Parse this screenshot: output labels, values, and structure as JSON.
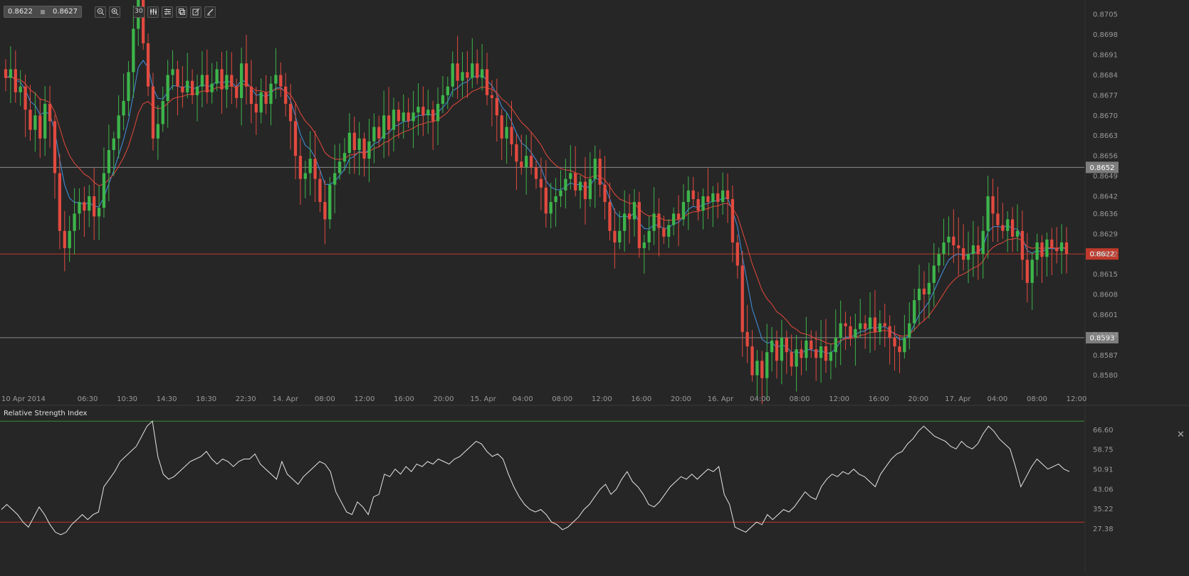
{
  "toolbar": {
    "bid": "0.8622",
    "ask": "0.8627",
    "timeframe": "30",
    "buttons": [
      {
        "name": "zoom-out-icon",
        "glyph": "−"
      },
      {
        "name": "zoom-in-icon",
        "glyph": "+"
      }
    ],
    "tools": [
      {
        "name": "timeframe-button",
        "glyph": "30"
      },
      {
        "name": "chart-type-icon",
        "glyph": "⫼"
      },
      {
        "name": "indicators-icon",
        "glyph": "☰"
      },
      {
        "name": "template-icon",
        "glyph": "⎘"
      },
      {
        "name": "edit-icon",
        "glyph": "✎"
      },
      {
        "name": "draw-icon",
        "glyph": "✐"
      }
    ]
  },
  "colors": {
    "background": "#262626",
    "up": "#3db54a",
    "down": "#e24a3f",
    "ema_fast": "#3f8bd4",
    "ema_slow": "#d6453a",
    "grid_line": "#8a8a8a",
    "current_price": "#c0392b",
    "rsi_line": "#e6e6e6",
    "rsi_upper": "#3a8a3a",
    "rsi_lower": "#c0392b"
  },
  "chart_data": [
    {
      "type": "candlestick",
      "ylim": [
        0.8575,
        0.8708
      ],
      "y_ticks": [
        "0.8705",
        "0.8698",
        "0.8691",
        "0.8684",
        "0.8677",
        "0.8670",
        "0.8663",
        "0.8656",
        "0.8649",
        "0.8642",
        "0.8636",
        "0.8629",
        "0.8622",
        "0.8615",
        "0.8608",
        "0.8601",
        "0.8594",
        "0.8587",
        "0.8580"
      ],
      "x_ticks": [
        "10 Apr 2014",
        "06:30",
        "10:30",
        "14:30",
        "18:30",
        "22:30",
        "14. Apr",
        "08:00",
        "12:00",
        "16:00",
        "20:00",
        "15. Apr",
        "04:00",
        "08:00",
        "12:00",
        "16:00",
        "20:00",
        "16. Apr",
        "04:00",
        "08:00",
        "12:00",
        "16:00",
        "20:00",
        "17. Apr",
        "04:00",
        "08:00",
        "12:00"
      ],
      "horizontal_lines": [
        {
          "value": 0.8652,
          "label": "0.8652",
          "kind": "level"
        },
        {
          "value": 0.8622,
          "label": "0.8622",
          "kind": "current"
        },
        {
          "value": 0.8593,
          "label": "0.8593",
          "kind": "level"
        }
      ],
      "moving_averages": [
        {
          "type": "EMA",
          "role": "fast",
          "color": "#3f8bd4"
        },
        {
          "type": "EMA",
          "role": "slow",
          "color": "#d6453a"
        }
      ],
      "path": [
        0.8683,
        0.8686,
        0.8678,
        0.868,
        0.8672,
        0.8665,
        0.867,
        0.8662,
        0.8674,
        0.8668,
        0.865,
        0.863,
        0.8624,
        0.863,
        0.8636,
        0.864,
        0.8637,
        0.8642,
        0.8635,
        0.8638,
        0.865,
        0.8658,
        0.8662,
        0.867,
        0.8675,
        0.8685,
        0.87,
        0.871,
        0.8695,
        0.868,
        0.8662,
        0.8667,
        0.8675,
        0.8684,
        0.8686,
        0.868,
        0.8678,
        0.8682,
        0.8677,
        0.868,
        0.8684,
        0.8678,
        0.8681,
        0.8686,
        0.8679,
        0.8684,
        0.868,
        0.8676,
        0.8688,
        0.868,
        0.8674,
        0.8671,
        0.8678,
        0.8674,
        0.8681,
        0.8684,
        0.868,
        0.8674,
        0.8668,
        0.8656,
        0.8648,
        0.865,
        0.8655,
        0.8648,
        0.864,
        0.8634,
        0.8646,
        0.865,
        0.8654,
        0.8657,
        0.8664,
        0.8658,
        0.8662,
        0.8655,
        0.8661,
        0.8666,
        0.8662,
        0.867,
        0.8665,
        0.8672,
        0.8668,
        0.8671,
        0.8668,
        0.8671,
        0.8673,
        0.867,
        0.8672,
        0.8668,
        0.8674,
        0.8677,
        0.868,
        0.8688,
        0.8682,
        0.8685,
        0.8683,
        0.8688,
        0.8683,
        0.8686,
        0.8677,
        0.8676,
        0.867,
        0.8662,
        0.8666,
        0.866,
        0.8654,
        0.8652,
        0.8656,
        0.8652,
        0.8648,
        0.8645,
        0.8636,
        0.864,
        0.8642,
        0.8644,
        0.8648,
        0.865,
        0.8644,
        0.8647,
        0.8641,
        0.8648,
        0.8655,
        0.8646,
        0.864,
        0.863,
        0.8626,
        0.863,
        0.8636,
        0.8634,
        0.864,
        0.8624,
        0.8626,
        0.863,
        0.8636,
        0.8631,
        0.8628,
        0.8632,
        0.8636,
        0.8634,
        0.864,
        0.8644,
        0.8641,
        0.8637,
        0.8642,
        0.864,
        0.8643,
        0.864,
        0.8644,
        0.8641,
        0.8626,
        0.8618,
        0.8595,
        0.859,
        0.858,
        0.8585,
        0.8579,
        0.8588,
        0.8592,
        0.8585,
        0.8593,
        0.8588,
        0.8583,
        0.8589,
        0.8586,
        0.8592,
        0.8589,
        0.8586,
        0.859,
        0.8585,
        0.8588,
        0.8593,
        0.8598,
        0.8597,
        0.8593,
        0.8596,
        0.8598,
        0.8596,
        0.86,
        0.8595,
        0.8598,
        0.8597,
        0.8593,
        0.859,
        0.8588,
        0.8593,
        0.8598,
        0.8606,
        0.861,
        0.8608,
        0.8612,
        0.8618,
        0.8622,
        0.8626,
        0.8628,
        0.8625,
        0.8624,
        0.862,
        0.8622,
        0.8625,
        0.8622,
        0.863,
        0.8642,
        0.8636,
        0.8632,
        0.863,
        0.8634,
        0.8628,
        0.863,
        0.862,
        0.8612,
        0.862,
        0.8626,
        0.8621,
        0.8627,
        0.8624,
        0.8623,
        0.8626,
        0.8622
      ]
    },
    {
      "type": "line",
      "title": "Relative Strength Index",
      "ylim": [
        25,
        74
      ],
      "y_ticks": [
        "66.60",
        "58.75",
        "50.91",
        "43.06",
        "35.22",
        "27.38"
      ],
      "levels": [
        70,
        30
      ],
      "values": [
        35,
        37,
        35,
        33,
        30,
        28,
        32,
        36,
        33,
        29,
        26,
        25,
        26,
        29,
        31,
        33,
        31,
        33,
        34,
        44,
        47,
        50,
        54,
        56,
        58,
        60,
        64,
        68,
        70,
        56,
        49,
        47,
        48,
        50,
        52,
        54,
        55,
        56,
        58,
        55,
        53,
        55,
        54,
        52,
        54,
        55,
        55,
        57,
        53,
        51,
        49,
        47,
        54,
        49,
        47,
        45,
        48,
        50,
        52,
        54,
        53,
        50,
        42,
        38,
        34,
        33,
        38,
        36,
        33,
        40,
        41,
        49,
        48,
        51,
        49,
        52,
        50,
        53,
        52,
        54,
        53,
        55,
        54,
        53,
        55,
        56,
        58,
        60,
        62,
        61,
        58,
        56,
        57,
        55,
        49,
        44,
        40,
        37,
        35,
        34,
        35,
        33,
        30,
        29,
        27,
        28,
        30,
        32,
        35,
        37,
        40,
        43,
        45,
        41,
        43,
        47,
        50,
        46,
        44,
        41,
        37,
        36,
        38,
        41,
        44,
        46,
        48,
        47,
        49,
        47,
        49,
        51,
        50,
        52,
        41,
        37,
        28,
        27,
        26,
        28,
        30,
        29,
        33,
        31,
        33,
        35,
        34,
        36,
        39,
        42,
        40,
        39,
        44,
        47,
        49,
        48,
        50,
        49,
        51,
        49,
        48,
        46,
        44,
        49,
        52,
        55,
        57,
        58,
        61,
        63,
        66,
        68,
        66,
        64,
        63,
        62,
        60,
        59,
        62,
        60,
        59,
        61,
        65,
        68,
        66,
        63,
        61,
        59,
        52,
        44,
        48,
        52,
        55,
        53,
        51,
        52,
        53,
        51,
        50
      ]
    }
  ]
}
